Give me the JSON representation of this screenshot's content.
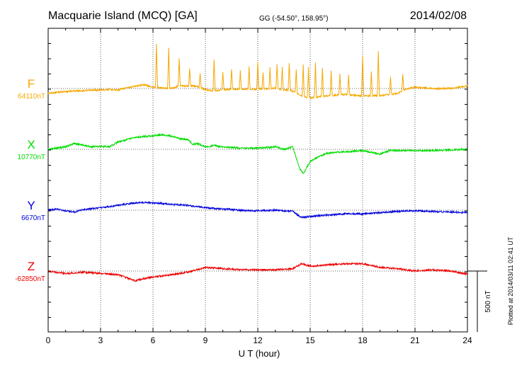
{
  "header": {
    "title": "Macquarie Island (MCQ)  [GA]",
    "coords": "GG (-54.50°, 158.95°)",
    "date": "2014/02/08"
  },
  "footer": {
    "plotted": "Plotted at 2014/03/11 02:41  UT"
  },
  "chart_data": {
    "type": "line",
    "title": "Macquarie Island (MCQ)  [GA]",
    "xlabel": "U T (hour)",
    "ylabel": "",
    "xlim": [
      0,
      24
    ],
    "xticks": [
      0,
      3,
      6,
      9,
      12,
      15,
      18,
      21,
      24
    ],
    "grid": true,
    "scale_bar": {
      "label": "500 nT",
      "value_nT": 500
    },
    "series": [
      {
        "name": "F",
        "baseline_label": "64110nT",
        "color": "#f5a800",
        "points": [
          [
            0,
            40
          ],
          [
            0.6,
            30
          ],
          [
            1.5,
            20
          ],
          [
            2.5,
            15
          ],
          [
            3.5,
            8
          ],
          [
            4,
            12
          ],
          [
            5,
            -20
          ],
          [
            5.5,
            -30
          ],
          [
            6,
            -10
          ],
          [
            7,
            0
          ],
          [
            7.5,
            -20
          ],
          [
            8.5,
            -20
          ],
          [
            9,
            10
          ],
          [
            9.5,
            20
          ],
          [
            10,
            10
          ],
          [
            11,
            5
          ],
          [
            12,
            5
          ],
          [
            13,
            0
          ],
          [
            14,
            20
          ],
          [
            14.5,
            60
          ],
          [
            15,
            80
          ],
          [
            16,
            60
          ],
          [
            17,
            50
          ],
          [
            18,
            60
          ],
          [
            19,
            60
          ],
          [
            20,
            40
          ],
          [
            20.5,
            5
          ],
          [
            21,
            -10
          ],
          [
            22,
            0
          ],
          [
            23,
            0
          ],
          [
            24,
            -20
          ]
        ],
        "spikes": [
          [
            6.2,
            -360
          ],
          [
            6.9,
            -330
          ],
          [
            7.5,
            -230
          ],
          [
            8.1,
            -140
          ],
          [
            8.7,
            -120
          ],
          [
            9.5,
            -260
          ],
          [
            10,
            -150
          ],
          [
            10.5,
            -170
          ],
          [
            11,
            -150
          ],
          [
            11.5,
            -180
          ],
          [
            12,
            -220
          ],
          [
            12.3,
            -140
          ],
          [
            12.7,
            -170
          ],
          [
            13.1,
            -200
          ],
          [
            13.4,
            -180
          ],
          [
            13.8,
            -230
          ],
          [
            14.2,
            -190
          ],
          [
            14.6,
            -260
          ],
          [
            14.9,
            -250
          ],
          [
            15.3,
            -280
          ],
          [
            15.7,
            -240
          ],
          [
            16.2,
            -200
          ],
          [
            16.7,
            -170
          ],
          [
            17.2,
            -160
          ],
          [
            18,
            -330
          ],
          [
            18.5,
            -200
          ],
          [
            18.9,
            -370
          ],
          [
            19.6,
            -140
          ],
          [
            20.3,
            -140
          ]
        ]
      },
      {
        "name": "X",
        "baseline_label": "10770nT",
        "color": "#00dd00",
        "points": [
          [
            0,
            0
          ],
          [
            1,
            -20
          ],
          [
            1.5,
            -50
          ],
          [
            2.5,
            -20
          ],
          [
            3,
            -25
          ],
          [
            3.5,
            -20
          ],
          [
            4,
            -60
          ],
          [
            4.5,
            -80
          ],
          [
            5,
            -100
          ],
          [
            6,
            -110
          ],
          [
            6.5,
            -120
          ],
          [
            7,
            -110
          ],
          [
            7.5,
            -90
          ],
          [
            8,
            -80
          ],
          [
            8.3,
            -40
          ],
          [
            8.5,
            -50
          ],
          [
            9,
            -20
          ],
          [
            9.5,
            -30
          ],
          [
            10,
            -20
          ],
          [
            11,
            -10
          ],
          [
            12,
            -10
          ],
          [
            13,
            -20
          ],
          [
            13.5,
            0
          ],
          [
            14,
            -20
          ],
          [
            14.4,
            160
          ],
          [
            14.6,
            200
          ],
          [
            15,
            100
          ],
          [
            15.5,
            60
          ],
          [
            16,
            30
          ],
          [
            17,
            20
          ],
          [
            18,
            10
          ],
          [
            19,
            40
          ],
          [
            19.5,
            10
          ],
          [
            20,
            10
          ],
          [
            21,
            10
          ],
          [
            22,
            10
          ],
          [
            24,
            0
          ]
        ],
        "spikes": []
      },
      {
        "name": "Y",
        "baseline_label": "6670nT",
        "color": "#0000dd",
        "points": [
          [
            0,
            0
          ],
          [
            0.5,
            -10
          ],
          [
            1,
            5
          ],
          [
            1.5,
            15
          ],
          [
            2,
            -5
          ],
          [
            3,
            -20
          ],
          [
            4,
            -40
          ],
          [
            5,
            -60
          ],
          [
            5.5,
            -65
          ],
          [
            6,
            -60
          ],
          [
            7,
            -50
          ],
          [
            8,
            -40
          ],
          [
            9,
            -20
          ],
          [
            10,
            -10
          ],
          [
            11,
            0
          ],
          [
            12,
            5
          ],
          [
            13,
            0
          ],
          [
            14,
            10
          ],
          [
            14.5,
            60
          ],
          [
            15,
            50
          ],
          [
            16,
            40
          ],
          [
            17,
            30
          ],
          [
            18,
            30
          ],
          [
            19,
            20
          ],
          [
            20,
            10
          ],
          [
            21,
            5
          ],
          [
            22,
            10
          ],
          [
            23,
            15
          ],
          [
            24,
            20
          ]
        ],
        "spikes": []
      },
      {
        "name": "Z",
        "baseline_label": "-62850nT",
        "color": "#ee0000",
        "points": [
          [
            0,
            0
          ],
          [
            1,
            20
          ],
          [
            2,
            10
          ],
          [
            3,
            20
          ],
          [
            4,
            30
          ],
          [
            5,
            80
          ],
          [
            5.5,
            60
          ],
          [
            6,
            50
          ],
          [
            7,
            30
          ],
          [
            8,
            10
          ],
          [
            9,
            -30
          ],
          [
            10,
            -20
          ],
          [
            11,
            -10
          ],
          [
            12,
            -10
          ],
          [
            13,
            -10
          ],
          [
            14,
            -20
          ],
          [
            14.5,
            -60
          ],
          [
            15,
            -40
          ],
          [
            16,
            -50
          ],
          [
            17,
            -60
          ],
          [
            18,
            -60
          ],
          [
            19,
            -30
          ],
          [
            20,
            -20
          ],
          [
            21,
            0
          ],
          [
            22,
            -10
          ],
          [
            23,
            0
          ],
          [
            24,
            25
          ]
        ],
        "spikes": []
      }
    ]
  }
}
